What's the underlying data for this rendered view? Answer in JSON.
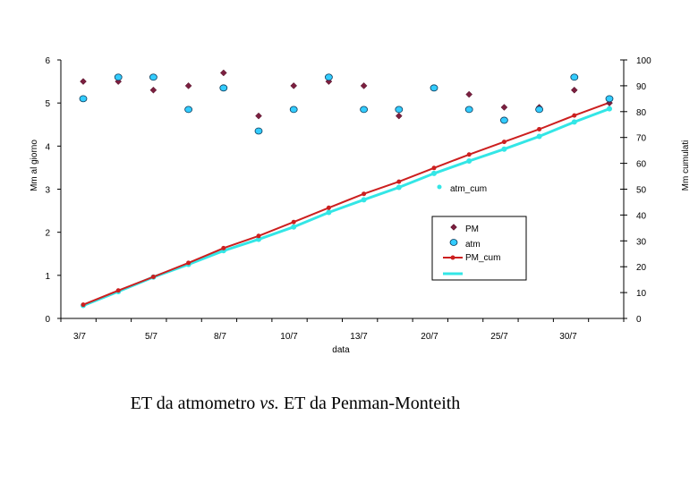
{
  "chart_data": {
    "type": "scatter",
    "xlabel": "data",
    "ylabel_left": "Mm al giorno",
    "ylabel_right": "Mm cumulati",
    "x_tick_labels": [
      "3/7",
      "5/7",
      "8/7",
      "10/7",
      "13/7",
      "20/7",
      "25/7",
      "30/7"
    ],
    "y_left_ticks": [
      "0",
      "1",
      "2",
      "3",
      "4",
      "5",
      "6"
    ],
    "y_right_ticks": [
      "0",
      "10",
      "20",
      "30",
      "40",
      "50",
      "60",
      "70",
      "80",
      "90",
      "100"
    ],
    "ylim_left": [
      0,
      6
    ],
    "ylim_right": [
      0,
      100
    ],
    "grid": false,
    "n_points": 16,
    "series": [
      {
        "name": "PM",
        "axis": "left",
        "marker": "diamond",
        "color": "#7b1f3f",
        "values": [
          5.5,
          5.5,
          5.3,
          5.4,
          5.7,
          4.7,
          5.4,
          5.5,
          5.4,
          4.7,
          null,
          5.2,
          4.9,
          4.9,
          5.3,
          5.0
        ]
      },
      {
        "name": "atm",
        "axis": "left",
        "marker": "circle",
        "color": "#33ccff",
        "values": [
          5.1,
          5.6,
          5.6,
          4.85,
          5.35,
          4.35,
          4.85,
          5.6,
          4.85,
          4.85,
          5.35,
          4.85,
          4.6,
          4.85,
          5.6,
          5.1
        ]
      },
      {
        "name": "PM_cum",
        "axis": "right",
        "type": "line",
        "color": "#cc1f1f",
        "values": [
          5.3,
          10.8,
          16.1,
          21.5,
          27.2,
          31.9,
          37.3,
          42.8,
          48.2,
          52.9,
          58.2,
          63.4,
          68.3,
          73.2,
          78.5,
          83.5
        ]
      },
      {
        "name": "atm_cum",
        "axis": "right",
        "type": "line",
        "color": "#33e6e6",
        "values": [
          5.0,
          10.4,
          16.0,
          20.9,
          26.2,
          30.6,
          35.4,
          41.0,
          45.9,
          50.7,
          56.1,
          60.9,
          65.5,
          70.4,
          76.0,
          81.1
        ]
      }
    ],
    "legend": {
      "placement": "center-right",
      "entries": [
        "PM",
        "atm",
        "PM_cum",
        ""
      ],
      "floating_label": "atm_cum"
    }
  },
  "caption": {
    "before": "ET da atmometro ",
    "italic": "vs.",
    "after": " ET da Penman-Monteith"
  }
}
